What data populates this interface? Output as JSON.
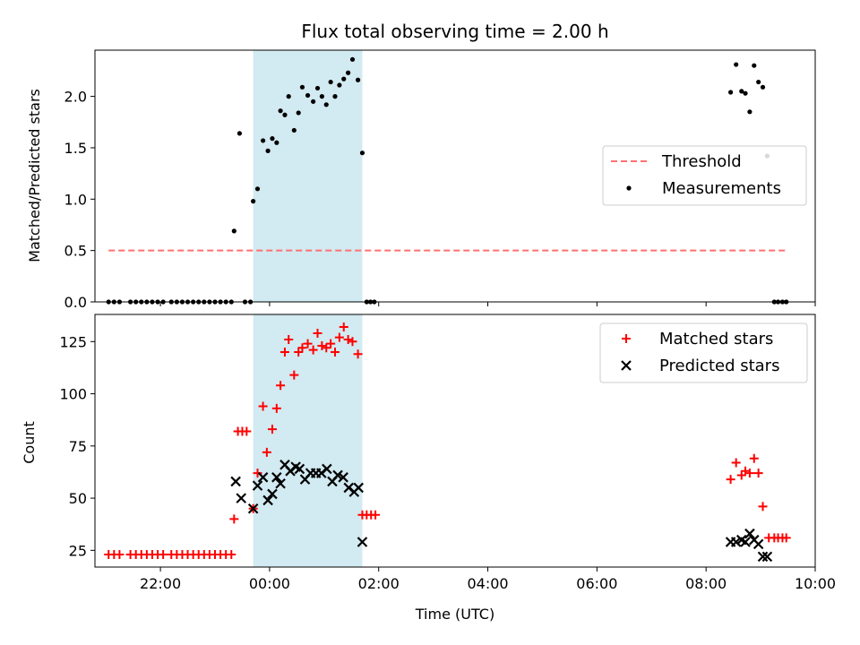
{
  "chart_data": [
    {
      "type": "scatter",
      "title": "Flux total observing time = 2.00 h",
      "xlabel": "",
      "ylabel": "Matched/Predicted stars",
      "xlim": [
        -3.2,
        10.0
      ],
      "ylim": [
        0,
        2.45
      ],
      "xticks": [
        -2,
        0,
        2,
        4,
        6,
        8,
        10
      ],
      "yticks": [
        0.0,
        0.5,
        1.0,
        1.5,
        2.0,
        2.5
      ],
      "ytick_labels": [
        "0.0",
        "0.5",
        "1.0",
        "1.5",
        "2.0"
      ],
      "shaded_span": [
        -0.3,
        1.7
      ],
      "shaded_color": "#add8e6",
      "legend": "center-right",
      "threshold": {
        "name": "Threshold",
        "x": [
          -2.95,
          9.45
        ],
        "y": 0.5,
        "color": "#ff7070",
        "style": "dashed"
      },
      "series": [
        {
          "name": "Measurements",
          "color": "#000000",
          "marker": "dot",
          "points": [
            [
              -2.95,
              0
            ],
            [
              -2.85,
              0
            ],
            [
              -2.75,
              0
            ],
            [
              -2.55,
              0
            ],
            [
              -2.45,
              0
            ],
            [
              -2.35,
              0
            ],
            [
              -2.25,
              0
            ],
            [
              -2.15,
              0
            ],
            [
              -2.05,
              0
            ],
            [
              -1.95,
              0
            ],
            [
              -1.8,
              0
            ],
            [
              -1.7,
              0
            ],
            [
              -1.6,
              0
            ],
            [
              -1.5,
              0
            ],
            [
              -1.4,
              0
            ],
            [
              -1.3,
              0
            ],
            [
              -1.2,
              0
            ],
            [
              -1.1,
              0
            ],
            [
              -1.0,
              0
            ],
            [
              -0.9,
              0
            ],
            [
              -0.8,
              0
            ],
            [
              -0.7,
              0
            ],
            [
              -0.65,
              0.69
            ],
            [
              -0.55,
              1.64
            ],
            [
              -0.45,
              0
            ],
            [
              -0.35,
              0
            ],
            [
              -0.3,
              0.98
            ],
            [
              -0.22,
              1.1
            ],
            [
              -0.12,
              1.57
            ],
            [
              -0.03,
              1.47
            ],
            [
              0.05,
              1.59
            ],
            [
              0.13,
              1.55
            ],
            [
              0.2,
              1.86
            ],
            [
              0.28,
              1.82
            ],
            [
              0.35,
              2.0
            ],
            [
              0.45,
              1.67
            ],
            [
              0.53,
              1.84
            ],
            [
              0.6,
              2.09
            ],
            [
              0.7,
              2.01
            ],
            [
              0.8,
              1.95
            ],
            [
              0.88,
              2.08
            ],
            [
              0.96,
              2.0
            ],
            [
              1.04,
              1.92
            ],
            [
              1.12,
              2.14
            ],
            [
              1.2,
              2.0
            ],
            [
              1.28,
              2.11
            ],
            [
              1.36,
              2.17
            ],
            [
              1.44,
              2.23
            ],
            [
              1.52,
              2.36
            ],
            [
              1.62,
              2.16
            ],
            [
              1.7,
              1.45
            ],
            [
              1.78,
              0
            ],
            [
              1.85,
              0
            ],
            [
              1.92,
              0
            ],
            [
              8.45,
              2.04
            ],
            [
              8.55,
              2.31
            ],
            [
              8.65,
              2.05
            ],
            [
              8.72,
              2.03
            ],
            [
              8.8,
              1.85
            ],
            [
              8.88,
              2.3
            ],
            [
              8.96,
              2.14
            ],
            [
              9.04,
              2.09
            ],
            [
              9.12,
              1.42
            ],
            [
              9.25,
              0
            ],
            [
              9.32,
              0
            ],
            [
              9.4,
              0
            ],
            [
              9.47,
              0
            ]
          ]
        }
      ]
    },
    {
      "type": "scatter",
      "title": "",
      "xlabel": "Time (UTC)",
      "ylabel": "Count",
      "xlim": [
        -3.2,
        10.0
      ],
      "ylim": [
        17,
        138
      ],
      "xticks": [
        -2,
        0,
        2,
        4,
        6,
        8,
        10
      ],
      "xtick_labels": [
        "22:00",
        "00:00",
        "02:00",
        "04:00",
        "06:00",
        "08:00",
        "10:00"
      ],
      "yticks": [
        25,
        50,
        75,
        100,
        125
      ],
      "ytick_labels": [
        "25",
        "50",
        "75",
        "100",
        "125"
      ],
      "shaded_span": [
        -0.3,
        1.7
      ],
      "shaded_color": "#add8e6",
      "legend": "top-right",
      "series": [
        {
          "name": "Matched stars",
          "color": "#ff0000",
          "marker": "plus",
          "points": [
            [
              -2.95,
              23
            ],
            [
              -2.85,
              23
            ],
            [
              -2.75,
              23
            ],
            [
              -2.55,
              23
            ],
            [
              -2.45,
              23
            ],
            [
              -2.35,
              23
            ],
            [
              -2.25,
              23
            ],
            [
              -2.15,
              23
            ],
            [
              -2.05,
              23
            ],
            [
              -1.95,
              23
            ],
            [
              -1.8,
              23
            ],
            [
              -1.7,
              23
            ],
            [
              -1.6,
              23
            ],
            [
              -1.5,
              23
            ],
            [
              -1.4,
              23
            ],
            [
              -1.3,
              23
            ],
            [
              -1.2,
              23
            ],
            [
              -1.1,
              23
            ],
            [
              -1.0,
              23
            ],
            [
              -0.9,
              23
            ],
            [
              -0.8,
              23
            ],
            [
              -0.7,
              23
            ],
            [
              -0.65,
              40
            ],
            [
              -0.58,
              82
            ],
            [
              -0.5,
              82
            ],
            [
              -0.42,
              82
            ],
            [
              -0.3,
              45
            ],
            [
              -0.22,
              62
            ],
            [
              -0.12,
              94
            ],
            [
              -0.05,
              72
            ],
            [
              0.05,
              83
            ],
            [
              0.13,
              93
            ],
            [
              0.2,
              104
            ],
            [
              0.28,
              120
            ],
            [
              0.35,
              126
            ],
            [
              0.45,
              109
            ],
            [
              0.53,
              120
            ],
            [
              0.6,
              122
            ],
            [
              0.7,
              124
            ],
            [
              0.8,
              121
            ],
            [
              0.88,
              129
            ],
            [
              0.96,
              123
            ],
            [
              1.04,
              122
            ],
            [
              1.12,
              124
            ],
            [
              1.2,
              120
            ],
            [
              1.28,
              127
            ],
            [
              1.36,
              132
            ],
            [
              1.44,
              126
            ],
            [
              1.52,
              125
            ],
            [
              1.62,
              119
            ],
            [
              1.7,
              42
            ],
            [
              1.78,
              42
            ],
            [
              1.86,
              42
            ],
            [
              1.94,
              42
            ],
            [
              8.45,
              59
            ],
            [
              8.55,
              67
            ],
            [
              8.65,
              61
            ],
            [
              8.72,
              63
            ],
            [
              8.8,
              62
            ],
            [
              8.88,
              69
            ],
            [
              8.96,
              62
            ],
            [
              9.04,
              46
            ],
            [
              9.15,
              31
            ],
            [
              9.25,
              31
            ],
            [
              9.32,
              31
            ],
            [
              9.4,
              31
            ],
            [
              9.47,
              31
            ]
          ]
        },
        {
          "name": "Predicted stars",
          "color": "#000000",
          "marker": "x",
          "points": [
            [
              -0.62,
              58
            ],
            [
              -0.52,
              50
            ],
            [
              -0.3,
              45
            ],
            [
              -0.22,
              56
            ],
            [
              -0.12,
              60
            ],
            [
              -0.03,
              49
            ],
            [
              0.05,
              52
            ],
            [
              0.13,
              60
            ],
            [
              0.2,
              57
            ],
            [
              0.28,
              66
            ],
            [
              0.38,
              63
            ],
            [
              0.48,
              65
            ],
            [
              0.55,
              64
            ],
            [
              0.65,
              59
            ],
            [
              0.75,
              62
            ],
            [
              0.85,
              62
            ],
            [
              0.95,
              62
            ],
            [
              1.05,
              64
            ],
            [
              1.15,
              58
            ],
            [
              1.25,
              61
            ],
            [
              1.35,
              60
            ],
            [
              1.45,
              55
            ],
            [
              1.55,
              53
            ],
            [
              1.63,
              55
            ],
            [
              1.7,
              29
            ],
            [
              8.45,
              29
            ],
            [
              8.55,
              29
            ],
            [
              8.65,
              30
            ],
            [
              8.72,
              29
            ],
            [
              8.8,
              33
            ],
            [
              8.88,
              30
            ],
            [
              8.96,
              28
            ],
            [
              9.04,
              22
            ],
            [
              9.12,
              22
            ]
          ]
        }
      ]
    }
  ]
}
